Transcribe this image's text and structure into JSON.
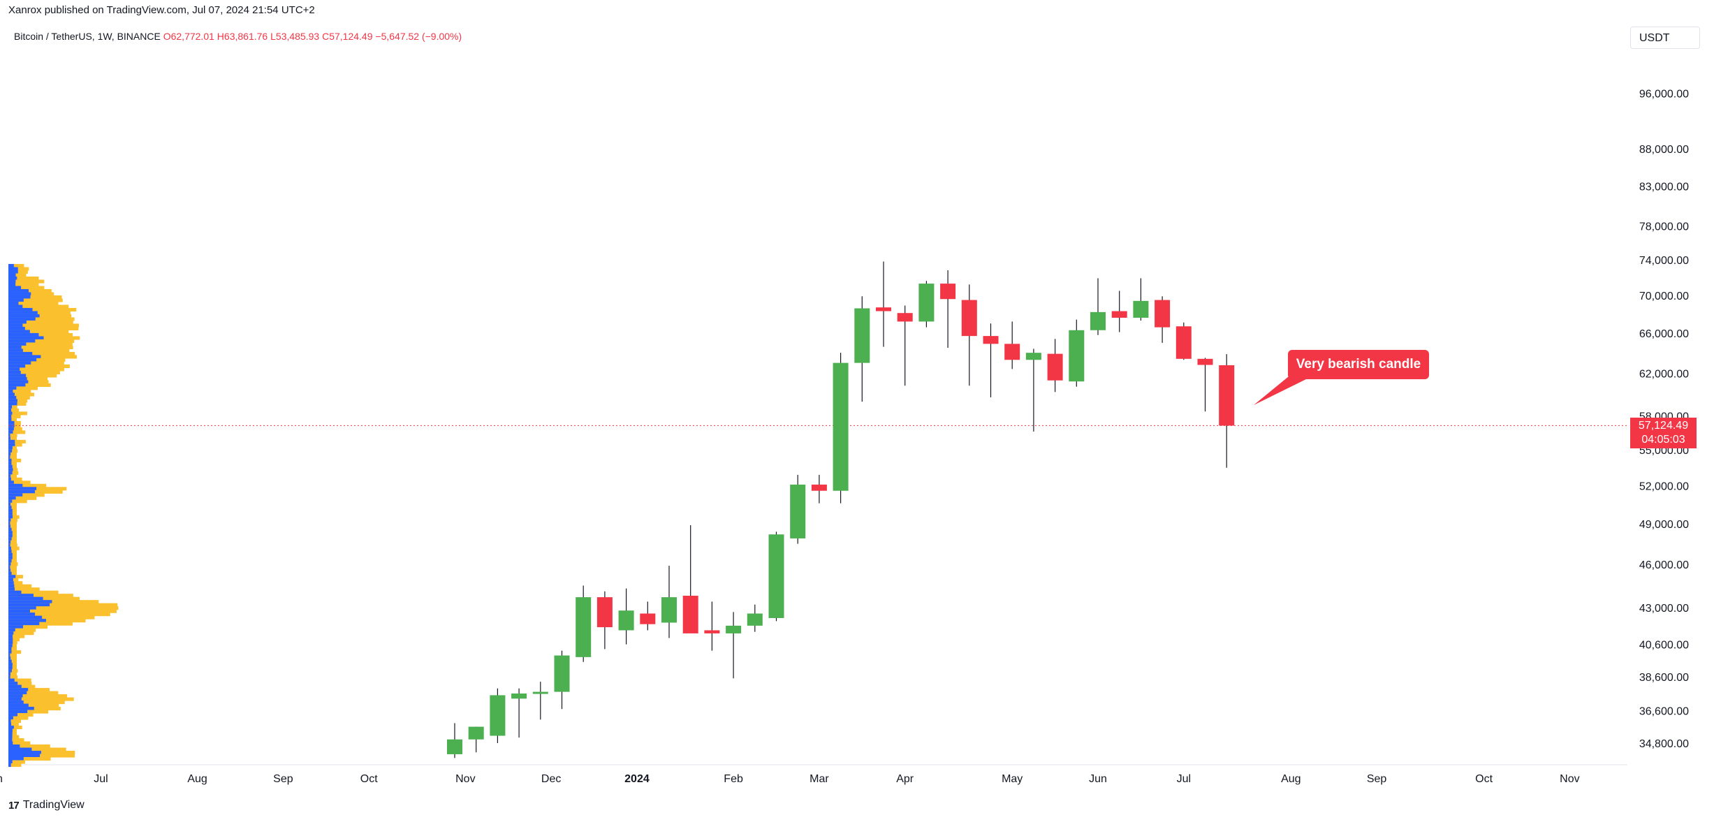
{
  "header": {
    "published": "Xanrox published on TradingView.com, Jul 07, 2024 21:54 UTC+2"
  },
  "symbol": {
    "name": "Bitcoin / TetherUS, 1W, BINANCE",
    "open_key": "O",
    "open": "62,772.01",
    "high_key": "H",
    "high": "63,861.76",
    "low_key": "L",
    "low": "53,485.93",
    "close_key": "C",
    "close": "57,124.49",
    "change": "−5,647.52 (−9.00%)"
  },
  "currency": "USDT",
  "annotation": {
    "text": "Very bearish candle"
  },
  "last_price": {
    "price": "57,124.49",
    "countdown": "04:05:03"
  },
  "footer": {
    "logo": "17",
    "brand": "TradingView"
  },
  "colors": {
    "up": "#4caf50",
    "down": "#f23645",
    "vp_blue": "#2962ff",
    "vp_yellow": "#fbc02d"
  },
  "chart_data": {
    "type": "candlestick",
    "title": "Bitcoin / TetherUS, 1W, BINANCE",
    "y_scale": "log",
    "ylim": [
      33500,
      105000
    ],
    "y_ticks": [
      {
        "value": 96000,
        "label": "96,000.00"
      },
      {
        "value": 88000,
        "label": "88,000.00"
      },
      {
        "value": 83000,
        "label": "83,000.00"
      },
      {
        "value": 78000,
        "label": "78,000.00"
      },
      {
        "value": 74000,
        "label": "74,000.00"
      },
      {
        "value": 70000,
        "label": "70,000.00"
      },
      {
        "value": 66000,
        "label": "66,000.00"
      },
      {
        "value": 62000,
        "label": "62,000.00"
      },
      {
        "value": 58000,
        "label": "58,000.00"
      },
      {
        "value": 55000,
        "label": "55,000.00"
      },
      {
        "value": 52000,
        "label": "52,000.00"
      },
      {
        "value": 49000,
        "label": "49,000.00"
      },
      {
        "value": 46000,
        "label": "46,000.00"
      },
      {
        "value": 43000,
        "label": "43,000.00"
      },
      {
        "value": 40600,
        "label": "40,600.00"
      },
      {
        "value": 38600,
        "label": "38,600.00"
      },
      {
        "value": 36600,
        "label": "36,600.00"
      },
      {
        "value": 34800,
        "label": "34,800.00"
      }
    ],
    "x_ticks": [
      {
        "label": "Jun",
        "week": -21.5,
        "bold": false
      },
      {
        "label": "Jul",
        "week": -16.5,
        "bold": false
      },
      {
        "label": "Aug",
        "week": -12,
        "bold": false
      },
      {
        "label": "Sep",
        "week": -8,
        "bold": false
      },
      {
        "label": "Oct",
        "week": -4,
        "bold": false
      },
      {
        "label": "Nov",
        "week": 0.5,
        "bold": false
      },
      {
        "label": "Dec",
        "week": 4.5,
        "bold": false
      },
      {
        "label": "2024",
        "week": 8.5,
        "bold": true
      },
      {
        "label": "Feb",
        "week": 13,
        "bold": false
      },
      {
        "label": "Mar",
        "week": 17,
        "bold": false
      },
      {
        "label": "Apr",
        "week": 21,
        "bold": false
      },
      {
        "label": "May",
        "week": 26,
        "bold": false
      },
      {
        "label": "Jun",
        "week": 30,
        "bold": false
      },
      {
        "label": "Jul",
        "week": 34,
        "bold": false
      },
      {
        "label": "Aug",
        "week": 39,
        "bold": false
      },
      {
        "label": "Sep",
        "week": 43,
        "bold": false
      },
      {
        "label": "Oct",
        "week": 48,
        "bold": false
      },
      {
        "label": "Nov",
        "week": 52,
        "bold": false
      }
    ],
    "candles": [
      {
        "o": 34200,
        "h": 35900,
        "l": 34000,
        "c": 35000
      },
      {
        "o": 35000,
        "h": 35700,
        "l": 34300,
        "c": 35700
      },
      {
        "o": 35200,
        "h": 37900,
        "l": 34800,
        "c": 37500
      },
      {
        "o": 37300,
        "h": 37900,
        "l": 35100,
        "c": 37600
      },
      {
        "o": 37600,
        "h": 38300,
        "l": 36100,
        "c": 37700
      },
      {
        "o": 37700,
        "h": 40200,
        "l": 36700,
        "c": 39900
      },
      {
        "o": 39800,
        "h": 44500,
        "l": 39500,
        "c": 43700
      },
      {
        "o": 43700,
        "h": 44100,
        "l": 40300,
        "c": 41700
      },
      {
        "o": 41500,
        "h": 44300,
        "l": 40600,
        "c": 42800
      },
      {
        "o": 42600,
        "h": 43400,
        "l": 41500,
        "c": 41900
      },
      {
        "o": 42000,
        "h": 45900,
        "l": 41000,
        "c": 43700
      },
      {
        "o": 43800,
        "h": 48900,
        "l": 41600,
        "c": 41300
      },
      {
        "o": 41500,
        "h": 43400,
        "l": 40200,
        "c": 41300
      },
      {
        "o": 41300,
        "h": 42700,
        "l": 38500,
        "c": 41800
      },
      {
        "o": 41800,
        "h": 43200,
        "l": 41400,
        "c": 42600
      },
      {
        "o": 42300,
        "h": 48400,
        "l": 42100,
        "c": 48200
      },
      {
        "o": 47900,
        "h": 52900,
        "l": 47500,
        "c": 52100
      },
      {
        "o": 52100,
        "h": 52900,
        "l": 50600,
        "c": 51600
      },
      {
        "o": 51600,
        "h": 64000,
        "l": 50600,
        "c": 63000
      },
      {
        "o": 63000,
        "h": 69900,
        "l": 59300,
        "c": 68600
      },
      {
        "o": 68700,
        "h": 73800,
        "l": 64600,
        "c": 68300
      },
      {
        "o": 68100,
        "h": 68900,
        "l": 60800,
        "c": 67200
      },
      {
        "o": 67200,
        "h": 71600,
        "l": 66600,
        "c": 71300
      },
      {
        "o": 71300,
        "h": 72800,
        "l": 64500,
        "c": 69600
      },
      {
        "o": 69500,
        "h": 71200,
        "l": 60800,
        "c": 65700
      },
      {
        "o": 65700,
        "h": 67000,
        "l": 59700,
        "c": 64900
      },
      {
        "o": 64900,
        "h": 67200,
        "l": 62400,
        "c": 63300
      },
      {
        "o": 63300,
        "h": 64400,
        "l": 56600,
        "c": 64000
      },
      {
        "o": 63900,
        "h": 65400,
        "l": 60200,
        "c": 61300
      },
      {
        "o": 61200,
        "h": 67400,
        "l": 60700,
        "c": 66300
      },
      {
        "o": 66300,
        "h": 71900,
        "l": 65800,
        "c": 68200
      },
      {
        "o": 68300,
        "h": 70500,
        "l": 66100,
        "c": 67600
      },
      {
        "o": 67600,
        "h": 71900,
        "l": 67300,
        "c": 69400
      },
      {
        "o": 69500,
        "h": 69900,
        "l": 65000,
        "c": 66600
      },
      {
        "o": 66700,
        "h": 67100,
        "l": 63300,
        "c": 63400
      },
      {
        "o": 63400,
        "h": 63500,
        "l": 58400,
        "c": 62800
      },
      {
        "o": 62772,
        "h": 63862,
        "l": 53486,
        "c": 57124
      }
    ],
    "current_price": 57124.49,
    "volume_profile_note": "visible-range volume profile on left edge (up volume blue, down volume yellow)"
  }
}
